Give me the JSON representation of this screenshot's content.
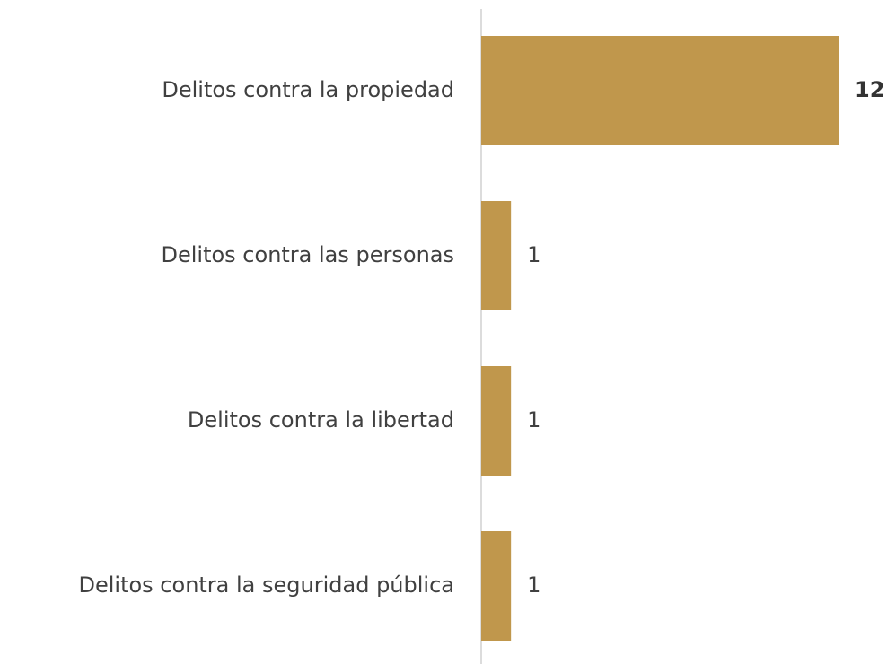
{
  "chart_data": {
    "type": "bar",
    "orientation": "horizontal",
    "categories": [
      "Delitos contra la propiedad",
      "Delitos contra las personas",
      "Delitos contra la libertad",
      "Delitos contra la seguridad pública"
    ],
    "values": [
      12,
      1,
      1,
      1
    ],
    "color": "#c0974c"
  }
}
